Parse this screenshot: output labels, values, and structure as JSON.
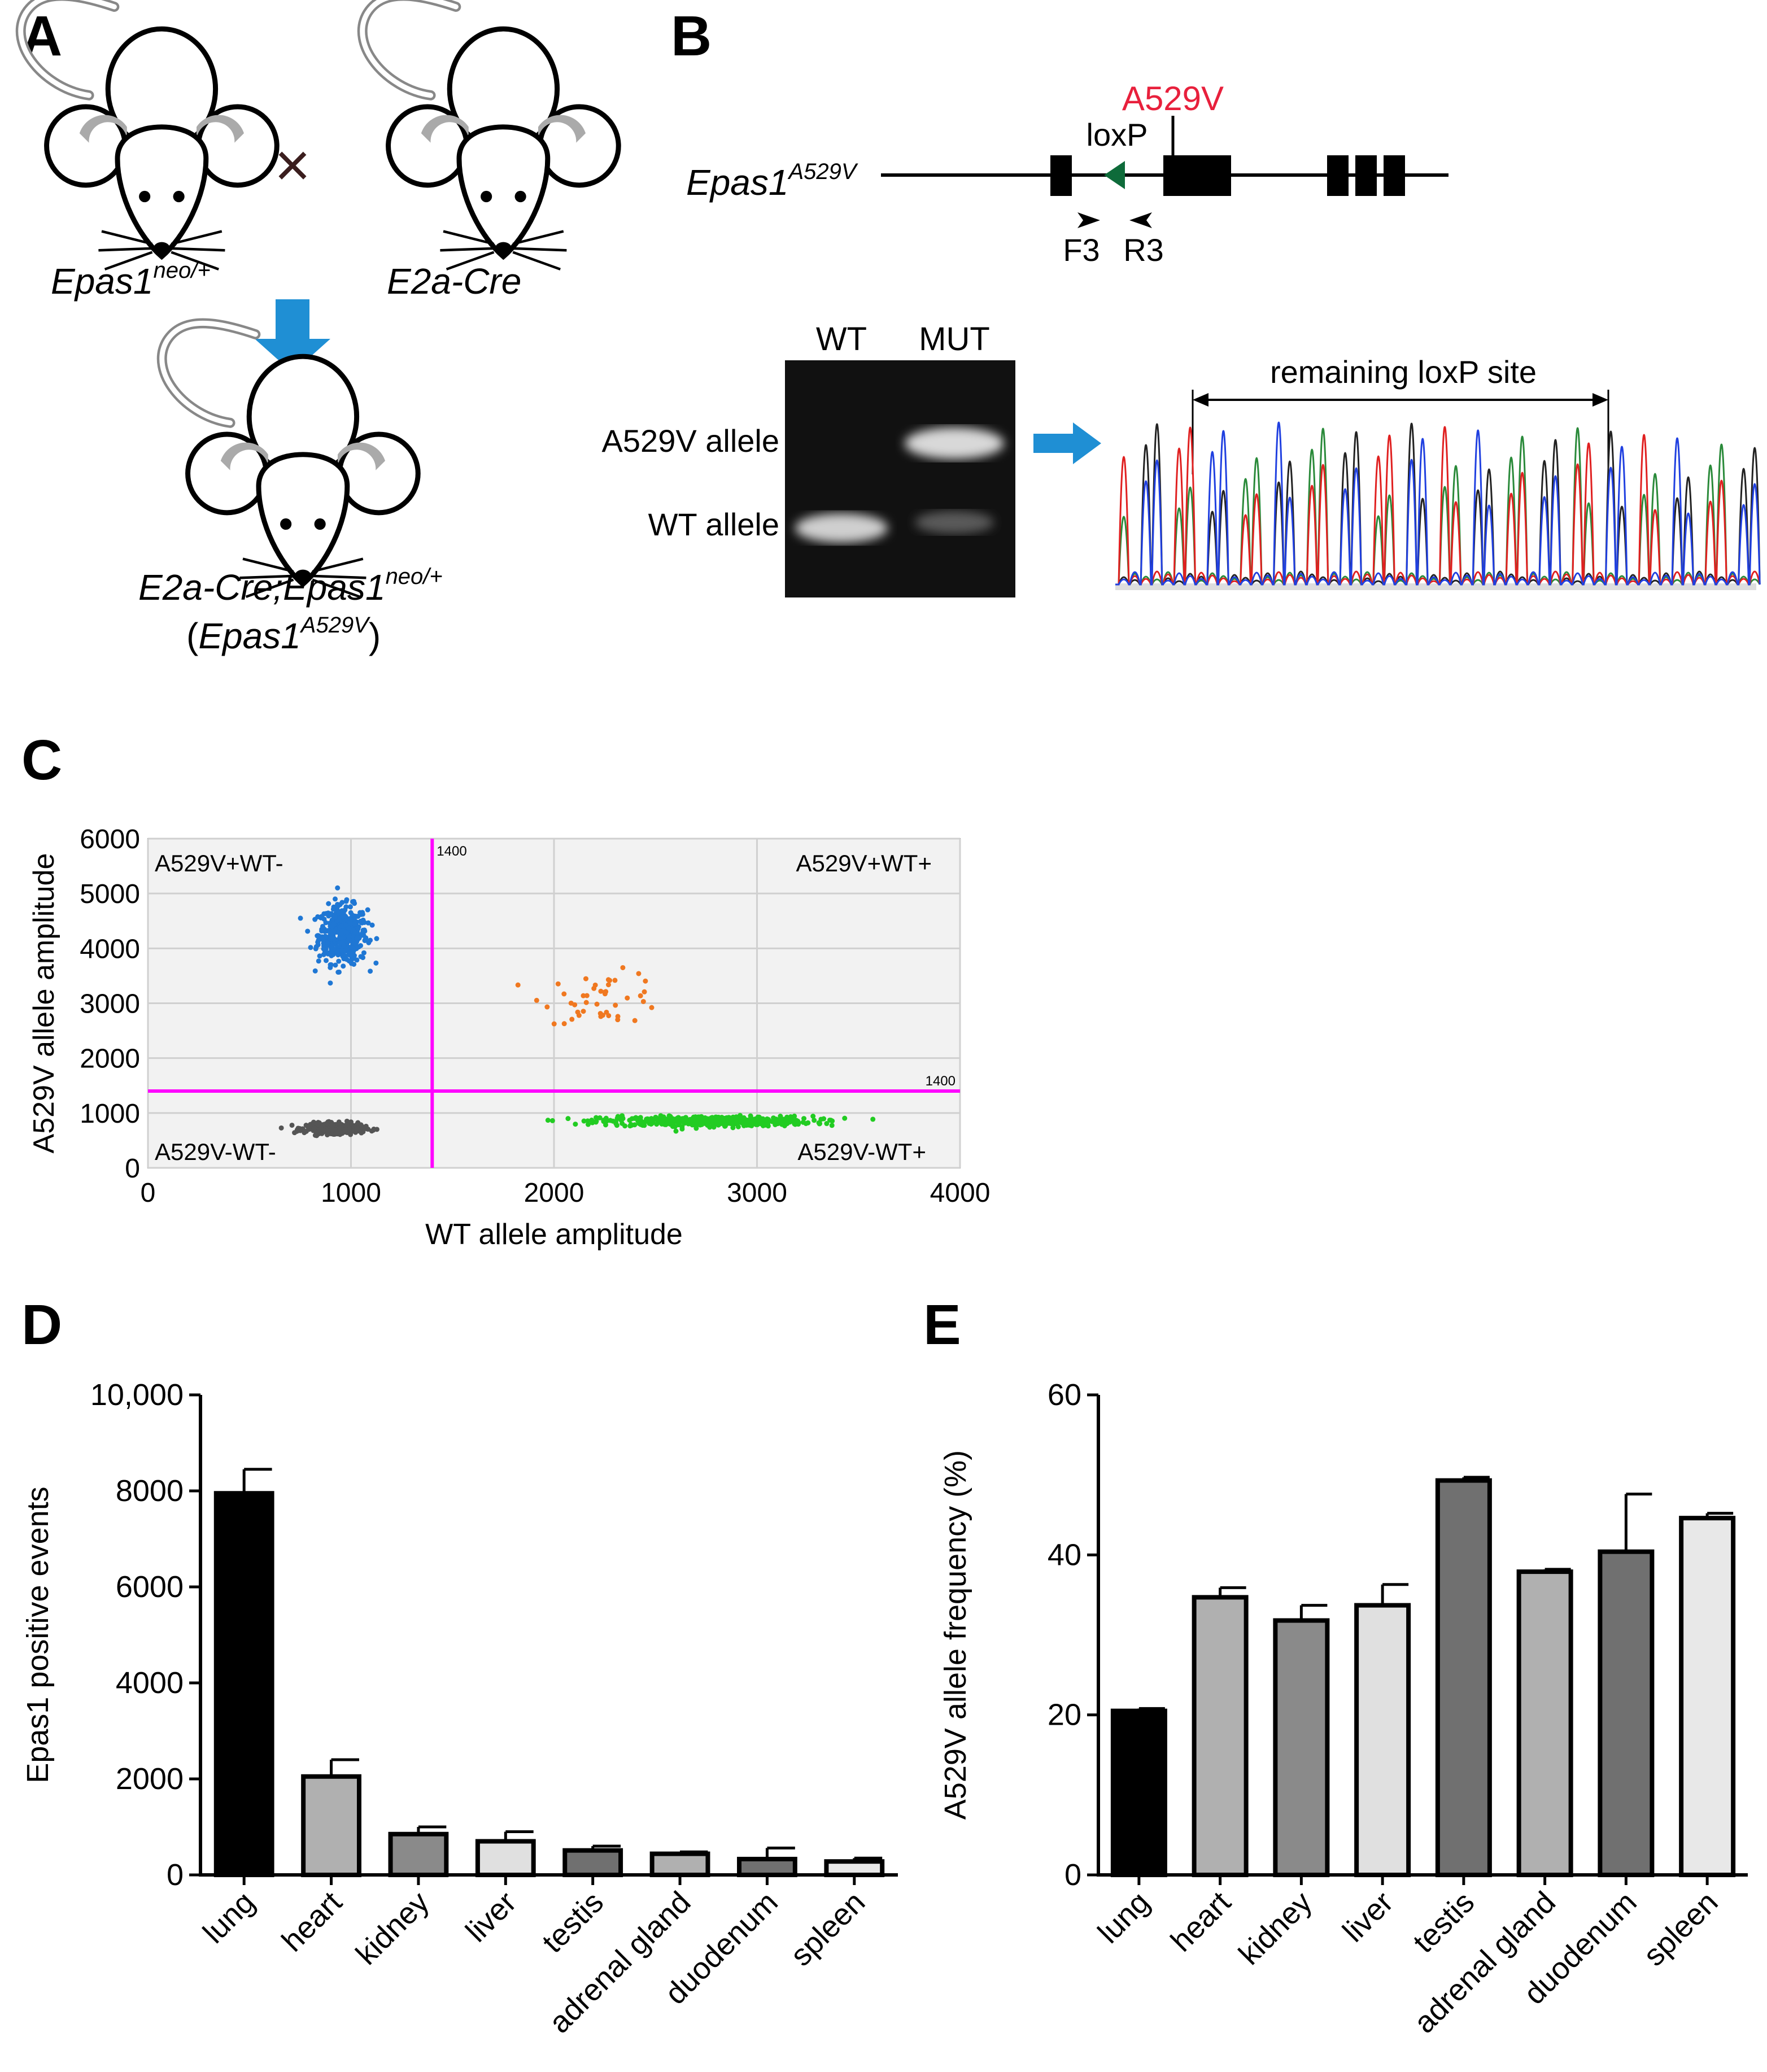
{
  "panels": {
    "A": {
      "letter": "A",
      "cross": "×",
      "mouse1": {
        "base": "Epas1",
        "sup": "neo/+"
      },
      "mouse2": "E2a-Cre",
      "offspring": {
        "line1_base": "E2a-Cre;Epas1",
        "line1_sup": "neo/+",
        "line2_open": "(",
        "line2_base": "Epas1",
        "line2_sup": "A529V",
        "line2_close": ")"
      }
    },
    "B": {
      "letter": "B",
      "gene": {
        "base": "Epas1",
        "sup": "A529V"
      },
      "mutation": "A529V",
      "loxp": "loxP",
      "primer_f": "F3",
      "primer_r": "R3",
      "gel_lanes": [
        "WT",
        "MUT"
      ],
      "gel_rows": [
        "A529V allele",
        "WT allele"
      ],
      "seq_label": "remaining loxP site"
    },
    "C": {
      "letter": "C",
      "colors": {
        "cluster_mut": "#1f77d4",
        "cluster_double": "#f07820",
        "cluster_wt": "#22cc22",
        "cluster_neg": "#555555",
        "threshold": "#ff00ff"
      }
    },
    "D": {
      "letter": "D"
    },
    "E": {
      "letter": "E"
    }
  },
  "chart_data": [
    {
      "type": "scatter",
      "panel": "C",
      "xlabel": "WT allele amplitude",
      "ylabel": "A529V allele amplitude",
      "xlim": [
        0,
        4000
      ],
      "ylim": [
        0,
        6000
      ],
      "xticks": [
        0,
        1000,
        2000,
        3000,
        4000
      ],
      "yticks": [
        0,
        1000,
        2000,
        3000,
        4000,
        5000,
        6000
      ],
      "grid": true,
      "thresholds": {
        "x": 1400,
        "y": 1400,
        "x_label": "1400",
        "y_label": "1400"
      },
      "quadrants": {
        "top_left": "A529V+WT-",
        "top_right": "A529V+WT+",
        "bottom_left": "A529V-WT-",
        "bottom_right": "A529V-WT+"
      },
      "clusters": [
        {
          "name": "A529V+WT-",
          "center": [
            960,
            4250
          ],
          "spread": [
            60,
            260
          ],
          "count": 460,
          "color": "#1f77d4"
        },
        {
          "name": "A529V+WT+",
          "center": [
            2250,
            3100
          ],
          "spread": [
            150,
            230
          ],
          "count": 45,
          "color": "#f07820"
        },
        {
          "name": "A529V-WT+",
          "center": [
            2750,
            850
          ],
          "spread": [
            260,
            45
          ],
          "count": 520,
          "color": "#22cc22"
        },
        {
          "name": "A529V-WT-",
          "center": [
            920,
            720
          ],
          "spread": [
            70,
            45
          ],
          "count": 420,
          "color": "#555555"
        }
      ]
    },
    {
      "type": "bar",
      "panel": "D",
      "categories": [
        "lung",
        "heart",
        "kidney",
        "liver",
        "testis",
        "adrenal gland",
        "duodenum",
        "spleen"
      ],
      "values": [
        7950,
        2050,
        850,
        700,
        510,
        440,
        330,
        280
      ],
      "errors": [
        500,
        350,
        150,
        200,
        90,
        40,
        230,
        70
      ],
      "colors": [
        "#000000",
        "#b0b0b0",
        "#8a8a8a",
        "#e0e0e0",
        "#707070",
        "#b0b0b0",
        "#707070",
        "#e8e8e8"
      ],
      "ylabel": "Epas1 positive events",
      "ylim": [
        0,
        10000
      ],
      "yticks": [
        0,
        2000,
        4000,
        6000,
        8000,
        10000
      ],
      "ytick_labels": [
        "0",
        "2000",
        "4000",
        "6000",
        "8000",
        "10,000"
      ]
    },
    {
      "type": "bar",
      "panel": "E",
      "categories": [
        "lung",
        "heart",
        "kidney",
        "liver",
        "testis",
        "adrenal gland",
        "duodenum",
        "spleen"
      ],
      "values": [
        20.5,
        34.7,
        31.8,
        33.7,
        49.3,
        37.9,
        40.4,
        44.6
      ],
      "errors": [
        0.3,
        1.2,
        1.9,
        2.6,
        0.4,
        0.3,
        7.2,
        0.6
      ],
      "colors": [
        "#000000",
        "#b0b0b0",
        "#8a8a8a",
        "#e0e0e0",
        "#707070",
        "#b0b0b0",
        "#707070",
        "#e8e8e8"
      ],
      "ylabel": "A529V allele frequency (%)",
      "ylim": [
        0,
        60
      ],
      "yticks": [
        0,
        20,
        40,
        60
      ],
      "ytick_labels": [
        "0",
        "20",
        "40",
        "60"
      ]
    }
  ]
}
